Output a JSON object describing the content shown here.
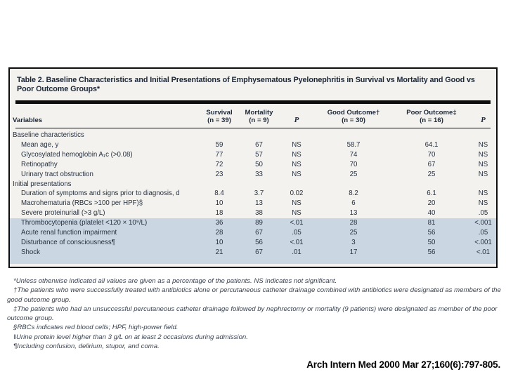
{
  "page": {
    "background": "#ffffff",
    "citation": "Arch Intern Med 2000 Mar 27;160(6):797-805."
  },
  "colors": {
    "table_background": "#f3f2ef",
    "highlight_row": "#cbd6e3",
    "table_text": "#212c3a",
    "rule": "#0d0d0d"
  },
  "table": {
    "title": "Table 2. Baseline Characteristics and Initial Presentations of Emphysematous Pyelonephritis in Survival vs Mortality and Good vs Poor Outcome Groups*",
    "columns": [
      {
        "label": "Variables",
        "sub": ""
      },
      {
        "label": "Survival",
        "sub": "(n = 39)"
      },
      {
        "label": "Mortality",
        "sub": "(n = 9)"
      },
      {
        "label": "P",
        "sub": ""
      },
      {
        "label": "Good Outcome†",
        "sub": "(n = 30)"
      },
      {
        "label": "Poor Outcome‡",
        "sub": "(n = 16)"
      },
      {
        "label": "P",
        "sub": ""
      }
    ],
    "rows": [
      {
        "type": "section",
        "label": "Baseline characteristics"
      },
      {
        "type": "data",
        "label": "Mean age, y",
        "values": [
          "59",
          "67",
          "NS",
          "58.7",
          "64.1",
          "NS"
        ]
      },
      {
        "type": "data",
        "label": "Glycosylated hemoglobin A₁c (>0.08)",
        "values": [
          "77",
          "57",
          "NS",
          "74",
          "70",
          "NS"
        ]
      },
      {
        "type": "data",
        "label": "Retinopathy",
        "values": [
          "72",
          "50",
          "NS",
          "70",
          "67",
          "NS"
        ]
      },
      {
        "type": "data",
        "label": "Urinary tract obstruction",
        "values": [
          "23",
          "33",
          "NS",
          "25",
          "25",
          "NS"
        ]
      },
      {
        "type": "section",
        "label": "Initial presentations"
      },
      {
        "type": "data",
        "label": "Duration of symptoms and signs prior to diagnosis, d",
        "values": [
          "8.4",
          "3.7",
          "0.02",
          "8.2",
          "6.1",
          "NS"
        ]
      },
      {
        "type": "data",
        "label": "Macrohematuria (RBCs >100 per HPF)§",
        "values": [
          "10",
          "13",
          "NS",
          "6",
          "20",
          "NS"
        ]
      },
      {
        "type": "data",
        "label": "Severe proteinuria‖ (>3 g/L)",
        "values": [
          "18",
          "38",
          "NS",
          "13",
          "40",
          ".05"
        ]
      },
      {
        "type": "data",
        "label": "Thrombocytopenia (platelet <120 × 10⁹/L)",
        "highlight": true,
        "values": [
          "36",
          "89",
          "<.01",
          "28",
          "81",
          "<.001"
        ]
      },
      {
        "type": "data",
        "label": "Acute renal function impairment",
        "highlight": true,
        "values": [
          "28",
          "67",
          ".05",
          "25",
          "56",
          ".05"
        ]
      },
      {
        "type": "data",
        "label": "Disturbance of consciousness¶",
        "highlight": true,
        "values": [
          "10",
          "56",
          "<.01",
          "3",
          "50",
          "<.001"
        ]
      },
      {
        "type": "data",
        "label": "Shock",
        "highlight": true,
        "values": [
          "21",
          "67",
          ".01",
          "17",
          "56",
          "<.01"
        ]
      }
    ],
    "footnotes": [
      "*Unless otherwise indicated all values are given as a percentage of the patients. NS indicates not significant.",
      "†The patients who were successfully treated with antibiotics alone or percutaneous catheter drainage combined with antibiotics were designated as members of the good outcome group.",
      "‡The patients who had an unsuccessful percutaneous catheter drainage followed by nephrectomy or mortality (9 patients) were designated as member of the poor outcome group.",
      "§RBCs indicates red blood cells; HPF, high-power field.",
      "‖Urine protein level higher than 3 g/L on at least 2 occasions during admission.",
      "¶Including confusion, delirium, stupor, and coma."
    ]
  }
}
